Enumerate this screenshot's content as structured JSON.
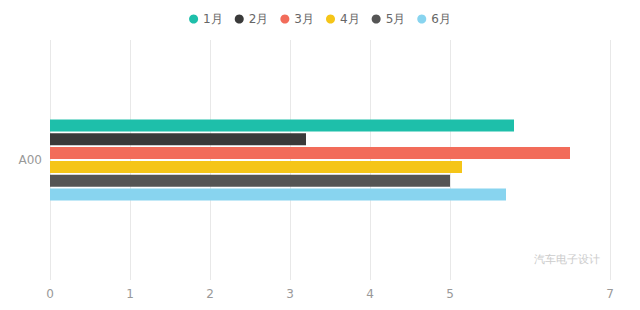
{
  "chart_data": {
    "type": "bar",
    "orientation": "horizontal",
    "categories": [
      "A00"
    ],
    "series": [
      {
        "name": "1月",
        "color": "#1ebfaa",
        "values": [
          5.8
        ]
      },
      {
        "name": "2月",
        "color": "#3a3a3a",
        "values": [
          3.2
        ]
      },
      {
        "name": "3月",
        "color": "#f26c5a",
        "values": [
          6.5
        ]
      },
      {
        "name": "4月",
        "color": "#f5c518",
        "values": [
          5.15
        ]
      },
      {
        "name": "5月",
        "color": "#555555",
        "values": [
          5.0
        ]
      },
      {
        "name": "6月",
        "color": "#88d4ef",
        "values": [
          5.7
        ]
      }
    ],
    "xlim": [
      0,
      7
    ],
    "xticks": [
      0,
      1,
      2,
      3,
      4,
      5,
      7
    ],
    "grid": true,
    "legend": "top",
    "annotations": [
      "汽车电子设计"
    ]
  }
}
